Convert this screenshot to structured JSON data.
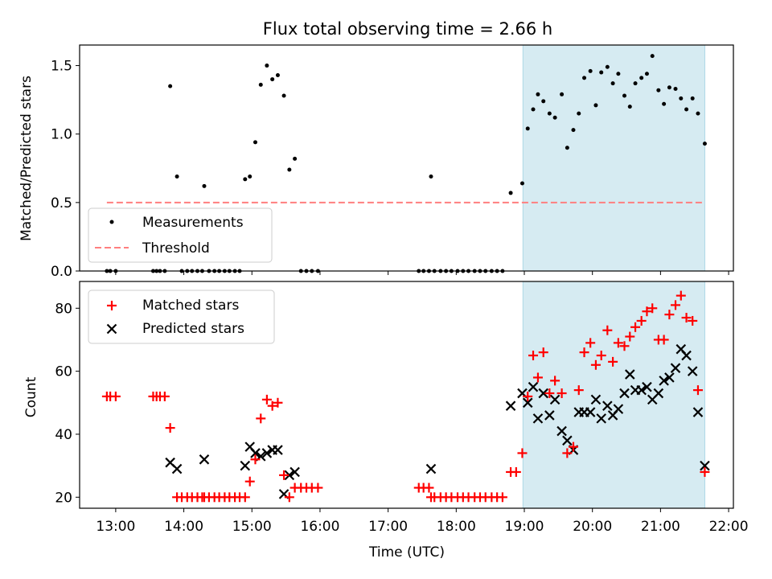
{
  "title": "Flux total observing time = 2.66 h",
  "colors": {
    "measurement": "#000000",
    "threshold": "#ff7f7f",
    "matched": "#ff0000",
    "predicted": "#000000",
    "highlight": "#add8e6"
  },
  "chart_data": [
    {
      "type": "scatter",
      "panel": "top",
      "ylabel": "Matched/Predicted stars",
      "xlim": [
        12.47,
        22.07
      ],
      "ylim": [
        0,
        1.65
      ],
      "yticks": [
        0.0,
        0.5,
        1.0,
        1.5
      ],
      "ytick_labels": [
        "0.0",
        "0.5",
        "1.0",
        "1.5"
      ],
      "legend": {
        "position": "lower-left",
        "entries": [
          "Measurements",
          "Threshold"
        ]
      },
      "highlight_span": [
        18.98,
        21.65
      ],
      "threshold": {
        "name": "Threshold",
        "value": 0.5,
        "x_range": [
          12.87,
          21.65
        ]
      },
      "series": [
        {
          "name": "Measurements",
          "marker": "dot",
          "points": [
            [
              12.87,
              0
            ],
            [
              12.92,
              0
            ],
            [
              13.0,
              0
            ],
            [
              13.55,
              0
            ],
            [
              13.6,
              0
            ],
            [
              13.65,
              0
            ],
            [
              13.72,
              0
            ],
            [
              13.8,
              1.35
            ],
            [
              13.9,
              0.69
            ],
            [
              13.97,
              0
            ],
            [
              14.05,
              0
            ],
            [
              14.12,
              0
            ],
            [
              14.2,
              0
            ],
            [
              14.27,
              0
            ],
            [
              14.3,
              0.62
            ],
            [
              14.37,
              0
            ],
            [
              14.45,
              0
            ],
            [
              14.52,
              0
            ],
            [
              14.6,
              0
            ],
            [
              14.67,
              0
            ],
            [
              14.75,
              0
            ],
            [
              14.82,
              0
            ],
            [
              14.9,
              0.67
            ],
            [
              14.97,
              0.69
            ],
            [
              15.05,
              0.94
            ],
            [
              15.13,
              1.36
            ],
            [
              15.22,
              1.5
            ],
            [
              15.3,
              1.4
            ],
            [
              15.38,
              1.43
            ],
            [
              15.47,
              1.28
            ],
            [
              15.55,
              0.74
            ],
            [
              15.63,
              0.82
            ],
            [
              15.72,
              0
            ],
            [
              15.8,
              0
            ],
            [
              15.88,
              0
            ],
            [
              15.97,
              0
            ],
            [
              17.45,
              0
            ],
            [
              17.52,
              0
            ],
            [
              17.6,
              0
            ],
            [
              17.63,
              0.69
            ],
            [
              17.68,
              0
            ],
            [
              17.77,
              0
            ],
            [
              17.85,
              0
            ],
            [
              17.93,
              0
            ],
            [
              18.02,
              0
            ],
            [
              18.1,
              0
            ],
            [
              18.18,
              0
            ],
            [
              18.27,
              0
            ],
            [
              18.35,
              0
            ],
            [
              18.43,
              0
            ],
            [
              18.52,
              0
            ],
            [
              18.6,
              0
            ],
            [
              18.68,
              0
            ],
            [
              18.8,
              0.57
            ],
            [
              18.97,
              0.64
            ],
            [
              19.05,
              1.04
            ],
            [
              19.13,
              1.18
            ],
            [
              19.2,
              1.29
            ],
            [
              19.28,
              1.24
            ],
            [
              19.37,
              1.15
            ],
            [
              19.45,
              1.12
            ],
            [
              19.55,
              1.29
            ],
            [
              19.63,
              0.9
            ],
            [
              19.72,
              1.03
            ],
            [
              19.8,
              1.15
            ],
            [
              19.88,
              1.41
            ],
            [
              19.97,
              1.46
            ],
            [
              20.05,
              1.21
            ],
            [
              20.13,
              1.45
            ],
            [
              20.22,
              1.49
            ],
            [
              20.3,
              1.37
            ],
            [
              20.38,
              1.44
            ],
            [
              20.47,
              1.28
            ],
            [
              20.55,
              1.2
            ],
            [
              20.63,
              1.37
            ],
            [
              20.72,
              1.41
            ],
            [
              20.8,
              1.44
            ],
            [
              20.88,
              1.57
            ],
            [
              20.97,
              1.32
            ],
            [
              21.05,
              1.22
            ],
            [
              21.13,
              1.34
            ],
            [
              21.22,
              1.33
            ],
            [
              21.3,
              1.26
            ],
            [
              21.38,
              1.18
            ],
            [
              21.47,
              1.26
            ],
            [
              21.55,
              1.15
            ],
            [
              21.65,
              0.93
            ]
          ]
        }
      ]
    },
    {
      "type": "scatter",
      "panel": "bottom",
      "xlabel": "Time (UTC)",
      "ylabel": "Count",
      "xlim": [
        12.47,
        22.07
      ],
      "ylim": [
        16.5,
        88.5
      ],
      "xticks": [
        13,
        14,
        15,
        16,
        17,
        18,
        19,
        20,
        21,
        22
      ],
      "xtick_labels": [
        "13:00",
        "14:00",
        "15:00",
        "16:00",
        "17:00",
        "18:00",
        "19:00",
        "20:00",
        "21:00",
        "22:00"
      ],
      "yticks": [
        20,
        40,
        60,
        80
      ],
      "ytick_labels": [
        "20",
        "40",
        "60",
        "80"
      ],
      "legend": {
        "position": "upper-left",
        "entries": [
          "Matched stars",
          "Predicted stars"
        ]
      },
      "highlight_span": [
        18.98,
        21.65
      ],
      "series": [
        {
          "name": "Matched stars",
          "marker": "plus",
          "points": [
            [
              12.87,
              52
            ],
            [
              12.92,
              52
            ],
            [
              13.0,
              52
            ],
            [
              13.55,
              52
            ],
            [
              13.6,
              52
            ],
            [
              13.65,
              52
            ],
            [
              13.72,
              52
            ],
            [
              13.8,
              42
            ],
            [
              13.9,
              20
            ],
            [
              13.97,
              20
            ],
            [
              14.05,
              20
            ],
            [
              14.12,
              20
            ],
            [
              14.2,
              20
            ],
            [
              14.27,
              20
            ],
            [
              14.3,
              20
            ],
            [
              14.37,
              20
            ],
            [
              14.45,
              20
            ],
            [
              14.52,
              20
            ],
            [
              14.6,
              20
            ],
            [
              14.67,
              20
            ],
            [
              14.75,
              20
            ],
            [
              14.82,
              20
            ],
            [
              14.9,
              20
            ],
            [
              14.97,
              25
            ],
            [
              15.05,
              32
            ],
            [
              15.13,
              45
            ],
            [
              15.22,
              51
            ],
            [
              15.3,
              49
            ],
            [
              15.38,
              50
            ],
            [
              15.47,
              27
            ],
            [
              15.55,
              20
            ],
            [
              15.63,
              23
            ],
            [
              15.72,
              23
            ],
            [
              15.8,
              23
            ],
            [
              15.88,
              23
            ],
            [
              15.97,
              23
            ],
            [
              17.45,
              23
            ],
            [
              17.52,
              23
            ],
            [
              17.6,
              23
            ],
            [
              17.63,
              20
            ],
            [
              17.68,
              20
            ],
            [
              17.77,
              20
            ],
            [
              17.85,
              20
            ],
            [
              17.93,
              20
            ],
            [
              18.02,
              20
            ],
            [
              18.1,
              20
            ],
            [
              18.18,
              20
            ],
            [
              18.27,
              20
            ],
            [
              18.35,
              20
            ],
            [
              18.43,
              20
            ],
            [
              18.52,
              20
            ],
            [
              18.6,
              20
            ],
            [
              18.68,
              20
            ],
            [
              18.8,
              28
            ],
            [
              18.88,
              28
            ],
            [
              18.97,
              34
            ],
            [
              19.05,
              52
            ],
            [
              19.13,
              65
            ],
            [
              19.2,
              58
            ],
            [
              19.28,
              66
            ],
            [
              19.37,
              53
            ],
            [
              19.45,
              57
            ],
            [
              19.55,
              53
            ],
            [
              19.63,
              34
            ],
            [
              19.72,
              36
            ],
            [
              19.8,
              54
            ],
            [
              19.88,
              66
            ],
            [
              19.97,
              69
            ],
            [
              20.05,
              62
            ],
            [
              20.13,
              65
            ],
            [
              20.22,
              73
            ],
            [
              20.3,
              63
            ],
            [
              20.38,
              69
            ],
            [
              20.47,
              68
            ],
            [
              20.55,
              71
            ],
            [
              20.63,
              74
            ],
            [
              20.72,
              76
            ],
            [
              20.8,
              79
            ],
            [
              20.88,
              80
            ],
            [
              20.97,
              70
            ],
            [
              21.05,
              70
            ],
            [
              21.13,
              78
            ],
            [
              21.22,
              81
            ],
            [
              21.3,
              84
            ],
            [
              21.38,
              77
            ],
            [
              21.47,
              76
            ],
            [
              21.55,
              54
            ],
            [
              21.65,
              28
            ]
          ]
        },
        {
          "name": "Predicted stars",
          "marker": "x",
          "points": [
            [
              13.8,
              31
            ],
            [
              13.9,
              29
            ],
            [
              14.3,
              32
            ],
            [
              14.9,
              30
            ],
            [
              14.97,
              36
            ],
            [
              15.05,
              34
            ],
            [
              15.13,
              33
            ],
            [
              15.22,
              34
            ],
            [
              15.3,
              35
            ],
            [
              15.38,
              35
            ],
            [
              15.47,
              21
            ],
            [
              15.55,
              27
            ],
            [
              15.63,
              28
            ],
            [
              17.63,
              29
            ],
            [
              18.8,
              49
            ],
            [
              18.97,
              53
            ],
            [
              19.05,
              50
            ],
            [
              19.13,
              55
            ],
            [
              19.2,
              45
            ],
            [
              19.28,
              53
            ],
            [
              19.37,
              46
            ],
            [
              19.45,
              51
            ],
            [
              19.55,
              41
            ],
            [
              19.63,
              38
            ],
            [
              19.72,
              35
            ],
            [
              19.8,
              47
            ],
            [
              19.88,
              47
            ],
            [
              19.97,
              47
            ],
            [
              20.05,
              51
            ],
            [
              20.13,
              45
            ],
            [
              20.22,
              49
            ],
            [
              20.3,
              46
            ],
            [
              20.38,
              48
            ],
            [
              20.47,
              53
            ],
            [
              20.55,
              59
            ],
            [
              20.63,
              54
            ],
            [
              20.72,
              54
            ],
            [
              20.8,
              55
            ],
            [
              20.88,
              51
            ],
            [
              20.97,
              53
            ],
            [
              21.05,
              57
            ],
            [
              21.13,
              58
            ],
            [
              21.22,
              61
            ],
            [
              21.3,
              67
            ],
            [
              21.38,
              65
            ],
            [
              21.47,
              60
            ],
            [
              21.55,
              47
            ],
            [
              21.65,
              30
            ]
          ]
        }
      ]
    }
  ]
}
